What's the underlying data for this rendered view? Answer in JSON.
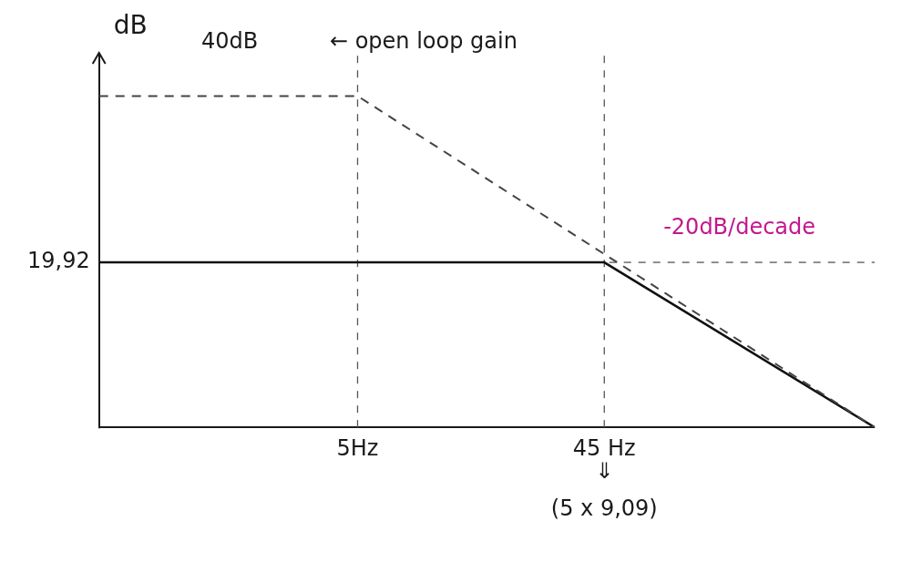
{
  "chart_data": {
    "type": "line",
    "y_label": "dB",
    "x": [
      0.5,
      5,
      45,
      500
    ],
    "series": [
      {
        "color": "#444444",
        "line_style": "dashed",
        "marker": "none",
        "values": [
          40,
          40,
          20.92,
          0
        ]
      },
      {
        "color": "#111111",
        "line_style": "solid",
        "marker": "none",
        "values": [
          19.92,
          19.92,
          19.92,
          0
        ]
      }
    ],
    "xlim": [
      0.5,
      500
    ],
    "ylim": [
      0,
      45
    ],
    "xticks": [
      {
        "value": 5,
        "label": "5Hz"
      },
      {
        "value": 45,
        "label": "45 Hz"
      }
    ],
    "yticks": [
      {
        "value": 19.92,
        "label": "19,92"
      }
    ],
    "log": "x",
    "grid": true,
    "annotations": [
      {
        "text": "40dB",
        "x": 1.6,
        "y": 46.5,
        "color": "#1a1a1a"
      },
      {
        "text": "← open loop gain",
        "x": 9,
        "y": 46.5,
        "color": "#1a1a1a"
      },
      {
        "text": "-20dB/decade",
        "x": 150,
        "y": 24,
        "color": "#c2188f"
      },
      {
        "text": "⇓",
        "x": 45,
        "y": -5.5,
        "color": "#1a1a1a"
      },
      {
        "text": "(5 x 9,09)",
        "x": 45,
        "y": -10,
        "color": "#1a1a1a"
      }
    ]
  }
}
